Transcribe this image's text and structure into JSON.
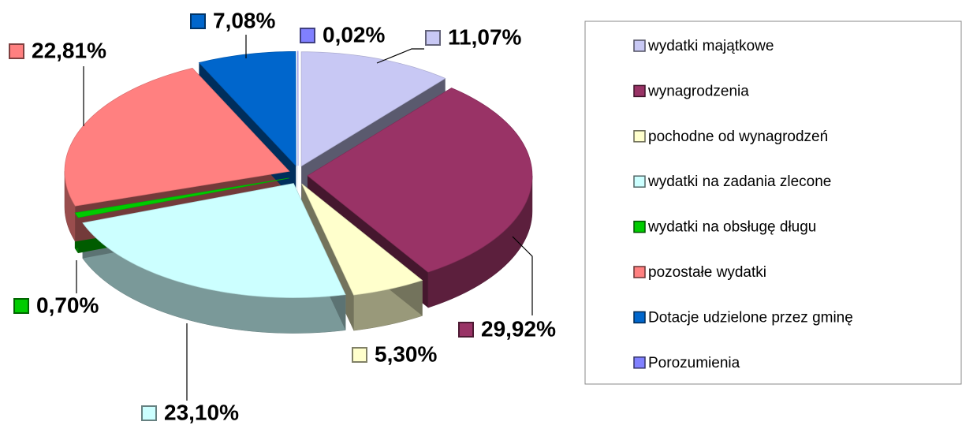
{
  "chart_data": {
    "type": "pie",
    "categories": [
      "wydatki majątkowe",
      "wynagrodzenia",
      "pochodne od wynagrodzeń",
      "wydatki na zadania zlecone",
      "wydatki na obsługę długu",
      "pozostałe wydatki",
      "Dotacje udzielone przez gminę",
      "Porozumienia"
    ],
    "values": [
      11.07,
      29.92,
      5.3,
      23.1,
      0.7,
      22.81,
      7.08,
      0.02
    ],
    "value_labels": [
      "11,07%",
      "29,92%",
      "5,30%",
      "23,10%",
      "0,70%",
      "22,81%",
      "7,08%",
      "0,02%"
    ],
    "colors": [
      "#c8c8f4",
      "#993366",
      "#ffffcc",
      "#ccffff",
      "#00cc00",
      "#ff8080",
      "#0066cc",
      "#8080ff"
    ],
    "legend": "right"
  }
}
